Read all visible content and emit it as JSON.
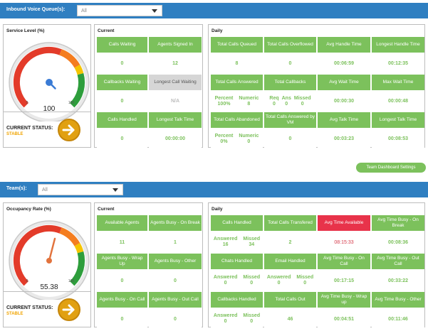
{
  "voice": {
    "queue_label": "Inbound Voice Queue(s):",
    "queue_value": "All",
    "service_level": {
      "title": "Service Level (%)",
      "value": "100",
      "value_num": 100,
      "min": "0",
      "max": "100",
      "status_label": "CURRENT STATUS:",
      "status_value": "STABLE"
    },
    "current": {
      "title": "Current",
      "cells": [
        {
          "label": "Calls Waiting",
          "value": "0"
        },
        {
          "label": "Agents Signed In",
          "value": "12"
        },
        {
          "label": "Callbacks Waiting",
          "value": "0"
        },
        {
          "label": "Longest Call Waiting",
          "value": "N/A"
        },
        {
          "label": "Calls Handled",
          "value": "0"
        },
        {
          "label": "Longest Talk Time",
          "value": "00:00:00"
        }
      ]
    },
    "daily": {
      "title": "Daily",
      "total_calls_queued": {
        "label": "Total Calls Queued",
        "value": "8"
      },
      "total_calls_overflowed": {
        "label": "Total Calls Overflowed",
        "value": "0"
      },
      "avg_handle_time": {
        "label": "Avg Handle Time",
        "value": "00:06:59"
      },
      "longest_handle_time": {
        "label": "Longest Handle Time",
        "value": "00:12:35"
      },
      "total_calls_answered": {
        "label": "Total Calls Answered",
        "a_label": "Percent",
        "a_value": "100%",
        "b_label": "Numeric",
        "b_value": "8"
      },
      "total_callbacks": {
        "label": "Total Callbacks",
        "a_label": "Req",
        "a_value": "0",
        "b_label": "Ans",
        "b_value": "0",
        "c_label": "Missed",
        "c_value": "0"
      },
      "avg_wait_time": {
        "label": "Avg Wait Time",
        "value": "00:00:30"
      },
      "max_wait_time": {
        "label": "Max Wait Time",
        "value": "00:00:48"
      },
      "total_calls_abandoned": {
        "label": "Total Calls Abandoned",
        "a_label": "Percent",
        "a_value": "0%",
        "b_label": "Numeric",
        "b_value": "0"
      },
      "total_calls_answered_vm": {
        "label": "Total Calls Answered by VM",
        "value": "0"
      },
      "avg_talk_time": {
        "label": "Avg Talk Time",
        "value": "00:03:23"
      },
      "longest_talk_time": {
        "label": "Longest Talk Time",
        "value": "00:08:53"
      }
    }
  },
  "team_dashboard_settings_label": "Team Dashboard Settings",
  "team": {
    "teams_label": "Team(s):",
    "teams_value": "All",
    "occupancy": {
      "title": "Occupancy Rate (%)",
      "value": "55.38",
      "value_num": 55.38,
      "min": "0",
      "max": "100",
      "status_label": "CURRENT STATUS:",
      "status_value": "STABLE"
    },
    "current": {
      "title": "Current",
      "cells": [
        {
          "label": "Available Agents",
          "value": "11"
        },
        {
          "label": "Agents Busy - On Break",
          "value": "1"
        },
        {
          "label": "Agents Busy - Wrap Up",
          "value": "0"
        },
        {
          "label": "Agents Busy - Other",
          "value": "0"
        },
        {
          "label": "Agents Busy - On Call",
          "value": "0"
        },
        {
          "label": "Agents Busy - Out Call",
          "value": "0"
        }
      ]
    },
    "daily": {
      "title": "Daily",
      "calls_handled": {
        "label": "Calls Handled",
        "a_label": "Answered",
        "a_value": "16",
        "b_label": "Missed",
        "b_value": "34"
      },
      "total_calls_transferred": {
        "label": "Total Calls Transfered",
        "value": "2"
      },
      "avg_time_available": {
        "label": "Avg Time Available",
        "value": "08:15:33"
      },
      "avg_time_busy_break": {
        "label": "Avg Time Busy - On Break",
        "value": "00:08:36"
      },
      "chats_handled": {
        "label": "Chats Handled",
        "a_label": "Answered",
        "a_value": "0",
        "b_label": "Missed",
        "b_value": "0"
      },
      "email_handled": {
        "label": "Email Handled",
        "a_label": "Answered",
        "a_value": "0",
        "b_label": "Missed",
        "b_value": "0"
      },
      "avg_time_busy_on_call": {
        "label": "Avg Time Busy - On Call",
        "value": "00:17:15"
      },
      "avg_time_busy_out_call": {
        "label": "Avg Time Busy - Out Call",
        "value": "00:33:22"
      },
      "callbacks_handled": {
        "label": "Callbacks Handled",
        "a_label": "Answered",
        "a_value": "0",
        "b_label": "Missed",
        "b_value": "0"
      },
      "total_calls_out": {
        "label": "Total Calls Out",
        "value": "46"
      },
      "avg_time_busy_wrap": {
        "label": "Avg Time Busy - Wrap up",
        "value": "00:04:51"
      },
      "avg_time_busy_other": {
        "label": "Avg Time Busy - Other",
        "value": "00:11:46"
      }
    }
  },
  "colors": {
    "accent": "#2f7fc1",
    "tile": "#7cc15c",
    "alert": "#e8334a",
    "status": "#f0a400"
  }
}
